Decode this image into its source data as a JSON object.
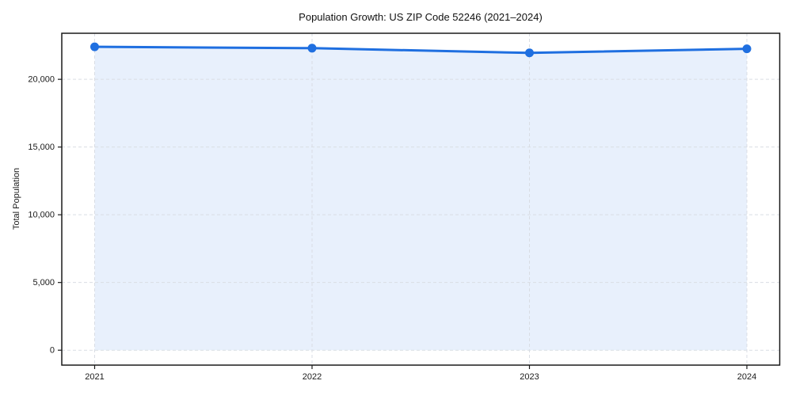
{
  "chart_data": {
    "type": "line",
    "title": "Population Growth: US ZIP Code 52246 (2021–2024)",
    "xlabel": "",
    "ylabel": "Total Population",
    "x": [
      2021,
      2022,
      2023,
      2024
    ],
    "series": [
      {
        "name": "Total Population",
        "values": [
          22400,
          22300,
          21950,
          22250
        ]
      }
    ],
    "ylim": [
      -1100,
      23400
    ],
    "yticks": [
      0,
      5000,
      10000,
      15000,
      20000
    ],
    "xticks": [
      2021,
      2022,
      2023,
      2024
    ],
    "grid": true,
    "grid_style": "dashed",
    "legend": "none",
    "area_fill": true,
    "marker": "circle",
    "colors": {
      "line": "#1f6fe0",
      "marker": "#1f6fe0",
      "area_fill": "#1f6fe0",
      "area_fill_opacity": 0.1,
      "grid": "#d9dde4",
      "axis": "#1a1a1a",
      "text": "#1a1a1a",
      "background": "#ffffff"
    }
  }
}
